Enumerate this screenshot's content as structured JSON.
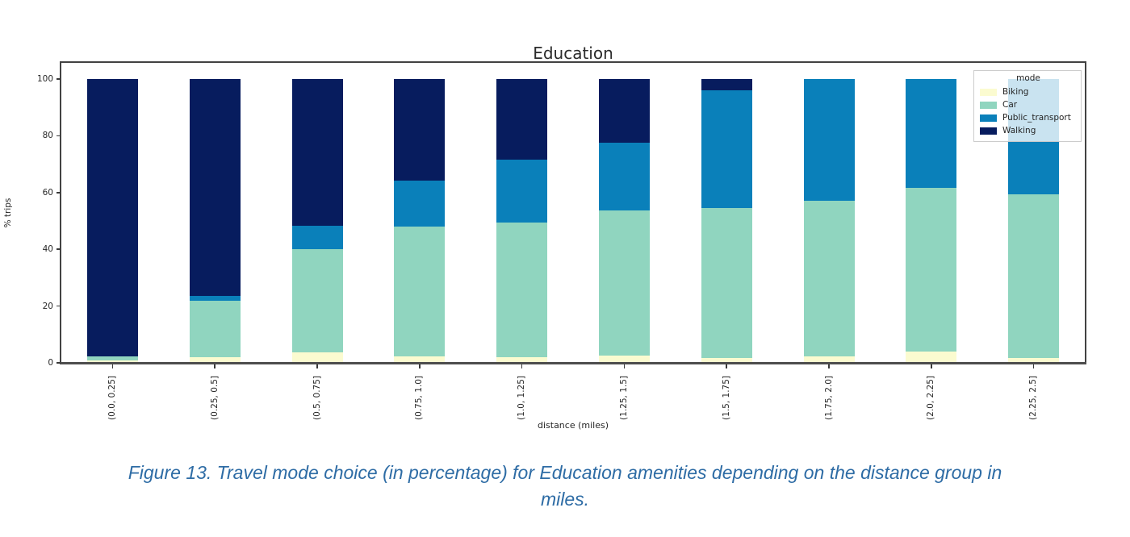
{
  "chart_data": {
    "type": "bar",
    "stacked": true,
    "title": "Education",
    "xlabel": "distance (miles)",
    "ylabel": "% trips",
    "ylim": [
      0,
      105.7
    ],
    "yticks": [
      0,
      20,
      40,
      60,
      80,
      100
    ],
    "grid": false,
    "legend": {
      "title": "mode",
      "position": "upper right"
    },
    "categories": [
      "(0.0, 0.25]",
      "(0.25, 0.5]",
      "(0.5, 0.75]",
      "(0.75, 1.0]",
      "(1.0, 1.25]",
      "(1.25, 1.5]",
      "(1.5, 1.75]",
      "(1.75, 2.0]",
      "(2.0, 2.25]",
      "(2.25, 2.5]"
    ],
    "series": [
      {
        "name": "Biking",
        "color": "#fbfbd0",
        "values": [
          0.8,
          2.0,
          3.6,
          2.3,
          1.9,
          2.5,
          1.7,
          2.2,
          4.1,
          1.8
        ]
      },
      {
        "name": "Car",
        "color": "#90d5bf",
        "values": [
          1.5,
          19.8,
          36.6,
          45.8,
          47.6,
          51.1,
          52.8,
          54.9,
          57.5,
          57.6
        ]
      },
      {
        "name": "Public_transport",
        "color": "#0a80ba",
        "values": [
          0.0,
          1.7,
          8.0,
          16.1,
          22.2,
          23.9,
          41.6,
          42.9,
          38.4,
          40.6
        ]
      },
      {
        "name": "Walking",
        "color": "#071c5e",
        "values": [
          97.7,
          76.5,
          51.8,
          35.8,
          28.3,
          22.5,
          3.9,
          0.0,
          0.0,
          0.0
        ]
      }
    ]
  },
  "caption": {
    "lines": [
      "Figure 13. Travel mode choice (in percentage) for Education amenities depending on the distance group in",
      "miles."
    ],
    "color": "#2e6ca5"
  }
}
